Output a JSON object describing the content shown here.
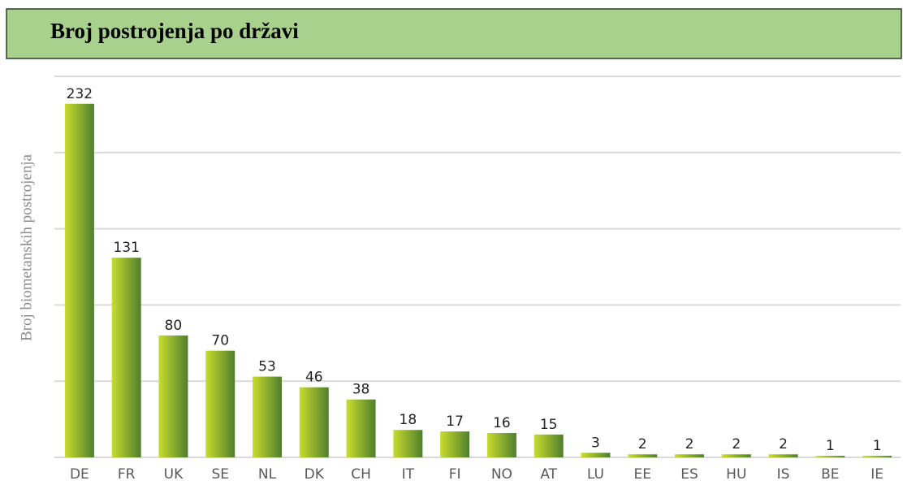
{
  "chart_data": {
    "type": "bar",
    "title": "Broj postrojenja po državi",
    "y_label": "Broj biometanskih postrojenja",
    "categories": [
      "DE",
      "FR",
      "UK",
      "SE",
      "NL",
      "DK",
      "CH",
      "IT",
      "FI",
      "NO",
      "AT",
      "LU",
      "EE",
      "ES",
      "HU",
      "IS",
      "BE",
      "IE"
    ],
    "values": [
      232,
      131,
      80,
      70,
      53,
      46,
      38,
      18,
      17,
      16,
      15,
      3,
      2,
      2,
      2,
      2,
      1,
      1
    ],
    "color": [
      "#c9dc2e",
      "#4f7f2e"
    ],
    "ylim": [
      0,
      250
    ],
    "yticks": [
      0,
      50,
      100,
      150,
      200,
      250
    ],
    "grid": true
  }
}
